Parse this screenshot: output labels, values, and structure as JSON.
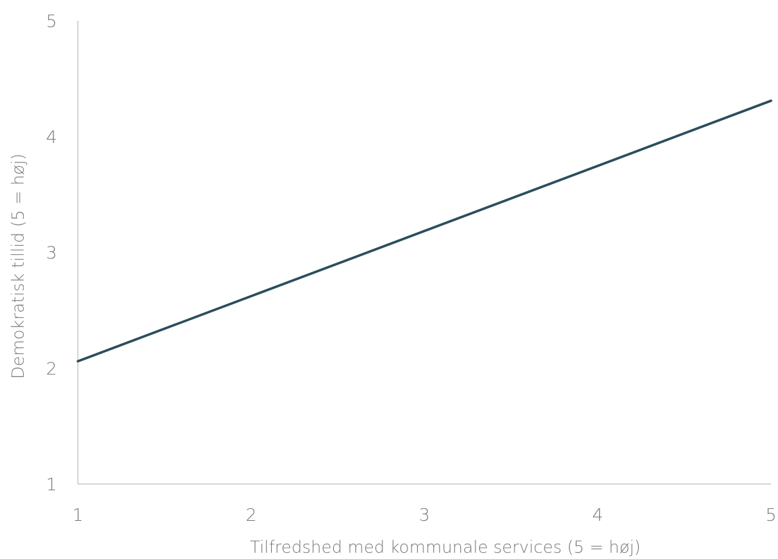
{
  "chart_data": {
    "type": "line",
    "title": "",
    "xlabel": "Tilfredshed med kommunale services (5 = høj)",
    "ylabel": "Demokratisk tillid (5 = høj)",
    "xlim": [
      1,
      5
    ],
    "ylim": [
      1,
      5
    ],
    "x_ticks": [
      "1",
      "2",
      "3",
      "4",
      "5"
    ],
    "y_ticks": [
      "1",
      "2",
      "3",
      "4",
      "5"
    ],
    "grid": false,
    "legend": "none",
    "series": [
      {
        "x": [
          1,
          5
        ],
        "y": [
          2.06,
          4.31
        ],
        "color": "#2b4d5c"
      }
    ]
  }
}
